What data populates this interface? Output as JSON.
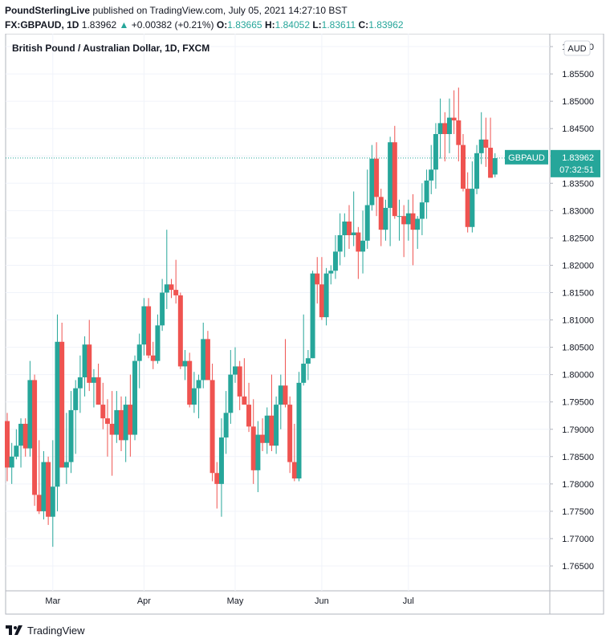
{
  "header": {
    "author": "PoundSterlingLive",
    "published": "published on TradingView.com, July 05, 2021 14:27:10 BST",
    "symbol": "FX:GBPAUD, 1D",
    "last": "1.83962",
    "arrow": "▲",
    "change": "+0.00382 (+0.21%)",
    "o_label": "O:",
    "o": "1.83665",
    "h_label": "H:",
    "h": "1.84052",
    "l_label": "L:",
    "l": "1.83611",
    "c_label": "C:",
    "c": "1.83962"
  },
  "footer": {
    "brand": "TradingView",
    "logo_icon": "tradingview-logo-icon"
  },
  "chart_data": {
    "type": "candlestick",
    "title": "British Pound / Australian Dollar, 1D, FXCM",
    "currency": "AUD",
    "price_label": {
      "symbol": "GBPAUD",
      "price": "1.83962",
      "countdown": "07:32:51"
    },
    "ylim": [
      1.7605,
      1.8632
    ],
    "y_ticks": [
      "1.76500",
      "1.77000",
      "1.77500",
      "1.78000",
      "1.78500",
      "1.79000",
      "1.79500",
      "1.80000",
      "1.80500",
      "1.81000",
      "1.81500",
      "1.82000",
      "1.82500",
      "1.83000",
      "1.83500",
      "1.84000",
      "1.84500",
      "1.85000",
      "1.85500",
      "1.86000"
    ],
    "x_ticks": [
      {
        "label": "Mar",
        "index": 10
      },
      {
        "label": "Apr",
        "index": 30
      },
      {
        "label": "May",
        "index": 50
      },
      {
        "label": "Jun",
        "index": 69
      },
      {
        "label": "Jul",
        "index": 88
      }
    ],
    "colors": {
      "up": "#26a69a",
      "down": "#ef5350",
      "grid": "#f0f3fa",
      "axis": "#131722"
    },
    "candles": [
      [
        1.7915,
        1.793,
        1.7805,
        1.783
      ],
      [
        1.783,
        1.7875,
        1.78,
        1.785
      ],
      [
        1.785,
        1.79,
        1.7845,
        1.787
      ],
      [
        1.787,
        1.792,
        1.783,
        1.791
      ],
      [
        1.791,
        1.792,
        1.785,
        1.7865
      ],
      [
        1.7865,
        1.8025,
        1.785,
        1.799
      ],
      [
        1.799,
        1.8,
        1.776,
        1.778
      ],
      [
        1.778,
        1.788,
        1.7745,
        1.775
      ],
      [
        1.775,
        1.786,
        1.7735,
        1.784
      ],
      [
        1.784,
        1.785,
        1.7725,
        1.774
      ],
      [
        1.774,
        1.788,
        1.7685,
        1.7795
      ],
      [
        1.7795,
        1.811,
        1.775,
        1.806
      ],
      [
        1.806,
        1.8095,
        1.783,
        1.783
      ],
      [
        1.783,
        1.793,
        1.78,
        1.784
      ],
      [
        1.784,
        1.797,
        1.782,
        1.7935
      ],
      [
        1.7935,
        1.799,
        1.7855,
        1.7975
      ],
      [
        1.7975,
        1.8035,
        1.793,
        1.7995
      ],
      [
        1.7995,
        1.807,
        1.796,
        1.8055
      ],
      [
        1.8055,
        1.81,
        1.797,
        1.7985
      ],
      [
        1.7985,
        1.801,
        1.794,
        1.7995
      ],
      [
        1.7995,
        1.802,
        1.7945,
        1.7945
      ],
      [
        1.7945,
        1.7985,
        1.79,
        1.792
      ],
      [
        1.792,
        1.7955,
        1.785,
        1.791
      ],
      [
        1.791,
        1.797,
        1.7815,
        1.789
      ],
      [
        1.789,
        1.797,
        1.7875,
        1.7935
      ],
      [
        1.7935,
        1.796,
        1.786,
        1.788
      ],
      [
        1.788,
        1.796,
        1.784,
        1.7945
      ],
      [
        1.7945,
        1.8,
        1.785,
        1.789
      ],
      [
        1.789,
        1.8035,
        1.788,
        1.8025
      ],
      [
        1.8025,
        1.8075,
        1.7975,
        1.8055
      ],
      [
        1.8055,
        1.814,
        1.8035,
        1.8125
      ],
      [
        1.8125,
        1.814,
        1.803,
        1.8035
      ],
      [
        1.8035,
        1.806,
        1.801,
        1.8025
      ],
      [
        1.8025,
        1.811,
        1.802,
        1.809
      ],
      [
        1.809,
        1.8175,
        1.808,
        1.815
      ],
      [
        1.815,
        1.8265,
        1.812,
        1.8165
      ],
      [
        1.8165,
        1.8175,
        1.814,
        1.8155
      ],
      [
        1.8155,
        1.821,
        1.813,
        1.8145
      ],
      [
        1.8145,
        1.815,
        1.801,
        1.8015
      ],
      [
        1.8015,
        1.8045,
        1.799,
        1.8025
      ],
      [
        1.8025,
        1.804,
        1.794,
        1.7945
      ],
      [
        1.7945,
        1.8005,
        1.793,
        1.7975
      ],
      [
        1.7975,
        1.8,
        1.792,
        1.799
      ],
      [
        1.799,
        1.8095,
        1.7975,
        1.8065
      ],
      [
        1.8065,
        1.808,
        1.799,
        1.799
      ],
      [
        1.799,
        1.802,
        1.7805,
        1.782
      ],
      [
        1.782,
        1.784,
        1.7755,
        1.78
      ],
      [
        1.78,
        1.792,
        1.774,
        1.7885
      ],
      [
        1.7885,
        1.797,
        1.7855,
        1.793
      ],
      [
        1.793,
        1.8045,
        1.791,
        1.8
      ],
      [
        1.8,
        1.805,
        1.7985,
        1.8015
      ],
      [
        1.8015,
        1.8025,
        1.7935,
        1.796
      ],
      [
        1.796,
        1.803,
        1.795,
        1.7945
      ],
      [
        1.7945,
        1.7985,
        1.7895,
        1.7905
      ],
      [
        1.7905,
        1.7955,
        1.78,
        1.7825
      ],
      [
        1.7825,
        1.7915,
        1.7785,
        1.789
      ],
      [
        1.789,
        1.792,
        1.786,
        1.7875
      ],
      [
        1.7875,
        1.794,
        1.7855,
        1.7925
      ],
      [
        1.7925,
        1.8,
        1.786,
        1.787
      ],
      [
        1.787,
        1.796,
        1.7855,
        1.7945
      ],
      [
        1.7945,
        1.8,
        1.79,
        1.798
      ],
      [
        1.798,
        1.8065,
        1.794,
        1.7945
      ],
      [
        1.7945,
        1.796,
        1.782,
        1.784
      ],
      [
        1.784,
        1.791,
        1.7805,
        1.781
      ],
      [
        1.781,
        1.8005,
        1.7805,
        1.7985
      ],
      [
        1.7985,
        1.811,
        1.798,
        1.802
      ],
      [
        1.802,
        1.8045,
        1.799,
        1.803
      ],
      [
        1.803,
        1.819,
        1.803,
        1.8185
      ],
      [
        1.8185,
        1.8215,
        1.813,
        1.8165
      ],
      [
        1.8165,
        1.8215,
        1.81,
        1.8105
      ],
      [
        1.8105,
        1.8195,
        1.809,
        1.8185
      ],
      [
        1.8185,
        1.82,
        1.8165,
        1.819
      ],
      [
        1.819,
        1.8255,
        1.8175,
        1.8225
      ],
      [
        1.8225,
        1.8295,
        1.82,
        1.8255
      ],
      [
        1.8255,
        1.8295,
        1.8215,
        1.828
      ],
      [
        1.828,
        1.831,
        1.823,
        1.8255
      ],
      [
        1.8255,
        1.8335,
        1.8235,
        1.826
      ],
      [
        1.826,
        1.827,
        1.8175,
        1.8225
      ],
      [
        1.8225,
        1.83,
        1.8185,
        1.8245
      ],
      [
        1.8245,
        1.8375,
        1.823,
        1.831
      ],
      [
        1.831,
        1.842,
        1.83,
        1.8395
      ],
      [
        1.8395,
        1.8425,
        1.829,
        1.8325
      ],
      [
        1.8325,
        1.834,
        1.8235,
        1.8265
      ],
      [
        1.8265,
        1.832,
        1.8245,
        1.8305
      ],
      [
        1.8305,
        1.8435,
        1.8235,
        1.8425
      ],
      [
        1.8425,
        1.8455,
        1.8285,
        1.829
      ],
      [
        1.829,
        1.832,
        1.8245,
        1.829
      ],
      [
        1.829,
        1.831,
        1.8215,
        1.8275
      ],
      [
        1.8275,
        1.832,
        1.8245,
        1.8295
      ],
      [
        1.8295,
        1.833,
        1.82,
        1.8265
      ],
      [
        1.8265,
        1.829,
        1.823,
        1.8285
      ],
      [
        1.8285,
        1.835,
        1.8255,
        1.8315
      ],
      [
        1.8315,
        1.8375,
        1.8285,
        1.8355
      ],
      [
        1.8355,
        1.842,
        1.833,
        1.8375
      ],
      [
        1.8375,
        1.846,
        1.834,
        1.844
      ],
      [
        1.844,
        1.8505,
        1.8395,
        1.846
      ],
      [
        1.846,
        1.848,
        1.839,
        1.844
      ],
      [
        1.844,
        1.8505,
        1.8405,
        1.847
      ],
      [
        1.847,
        1.852,
        1.844,
        1.8465
      ],
      [
        1.8465,
        1.8525,
        1.839,
        1.842
      ],
      [
        1.842,
        1.844,
        1.8335,
        1.834
      ],
      [
        1.834,
        1.837,
        1.826,
        1.827
      ],
      [
        1.827,
        1.839,
        1.826,
        1.834
      ],
      [
        1.834,
        1.842,
        1.833,
        1.8405
      ],
      [
        1.8405,
        1.848,
        1.8385,
        1.843
      ],
      [
        1.843,
        1.847,
        1.838,
        1.8415
      ],
      [
        1.8415,
        1.847,
        1.836,
        1.836
      ],
      [
        1.8366,
        1.8405,
        1.8361,
        1.8396
      ]
    ]
  }
}
